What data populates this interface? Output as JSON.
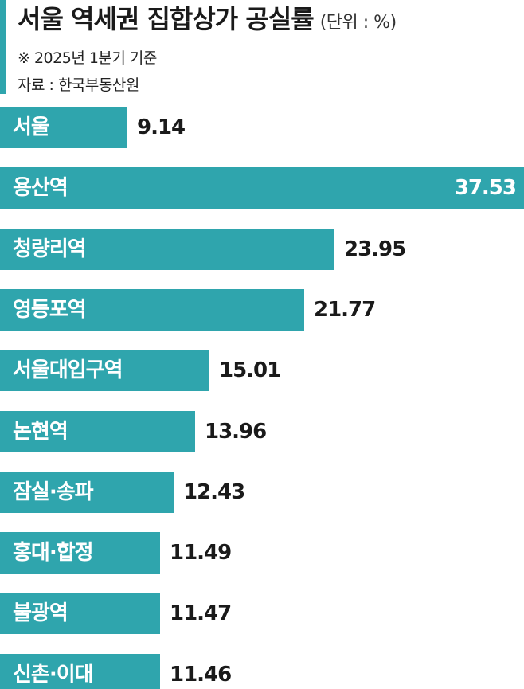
{
  "header": {
    "title": "서울 역세권 집합상가 공실률",
    "unit": "(단위 : %)",
    "basis": "※ 2025년 1분기 기준",
    "source": "자료 : 한국부동산원"
  },
  "colors": {
    "bar": "#2fa5ad",
    "accent": "#2fa5ad"
  },
  "chart_data": {
    "type": "bar",
    "orientation": "horizontal",
    "categories": [
      "서울",
      "용산역",
      "청량리역",
      "영등포역",
      "서울대입구역",
      "논현역",
      "잠실·송파",
      "홍대·합정",
      "불광역",
      "신촌·이대"
    ],
    "values": [
      9.14,
      37.53,
      23.95,
      21.77,
      15.01,
      13.96,
      12.43,
      11.49,
      11.47,
      11.46
    ],
    "value_labels": [
      "9.14",
      "37.53",
      "23.95",
      "21.77",
      "15.01",
      "13.96",
      "12.43",
      "11.49",
      "11.47",
      "11.46"
    ],
    "title": "서울 역세권 집합상가 공실률",
    "unit": "%",
    "grid": false,
    "legend": "none"
  }
}
